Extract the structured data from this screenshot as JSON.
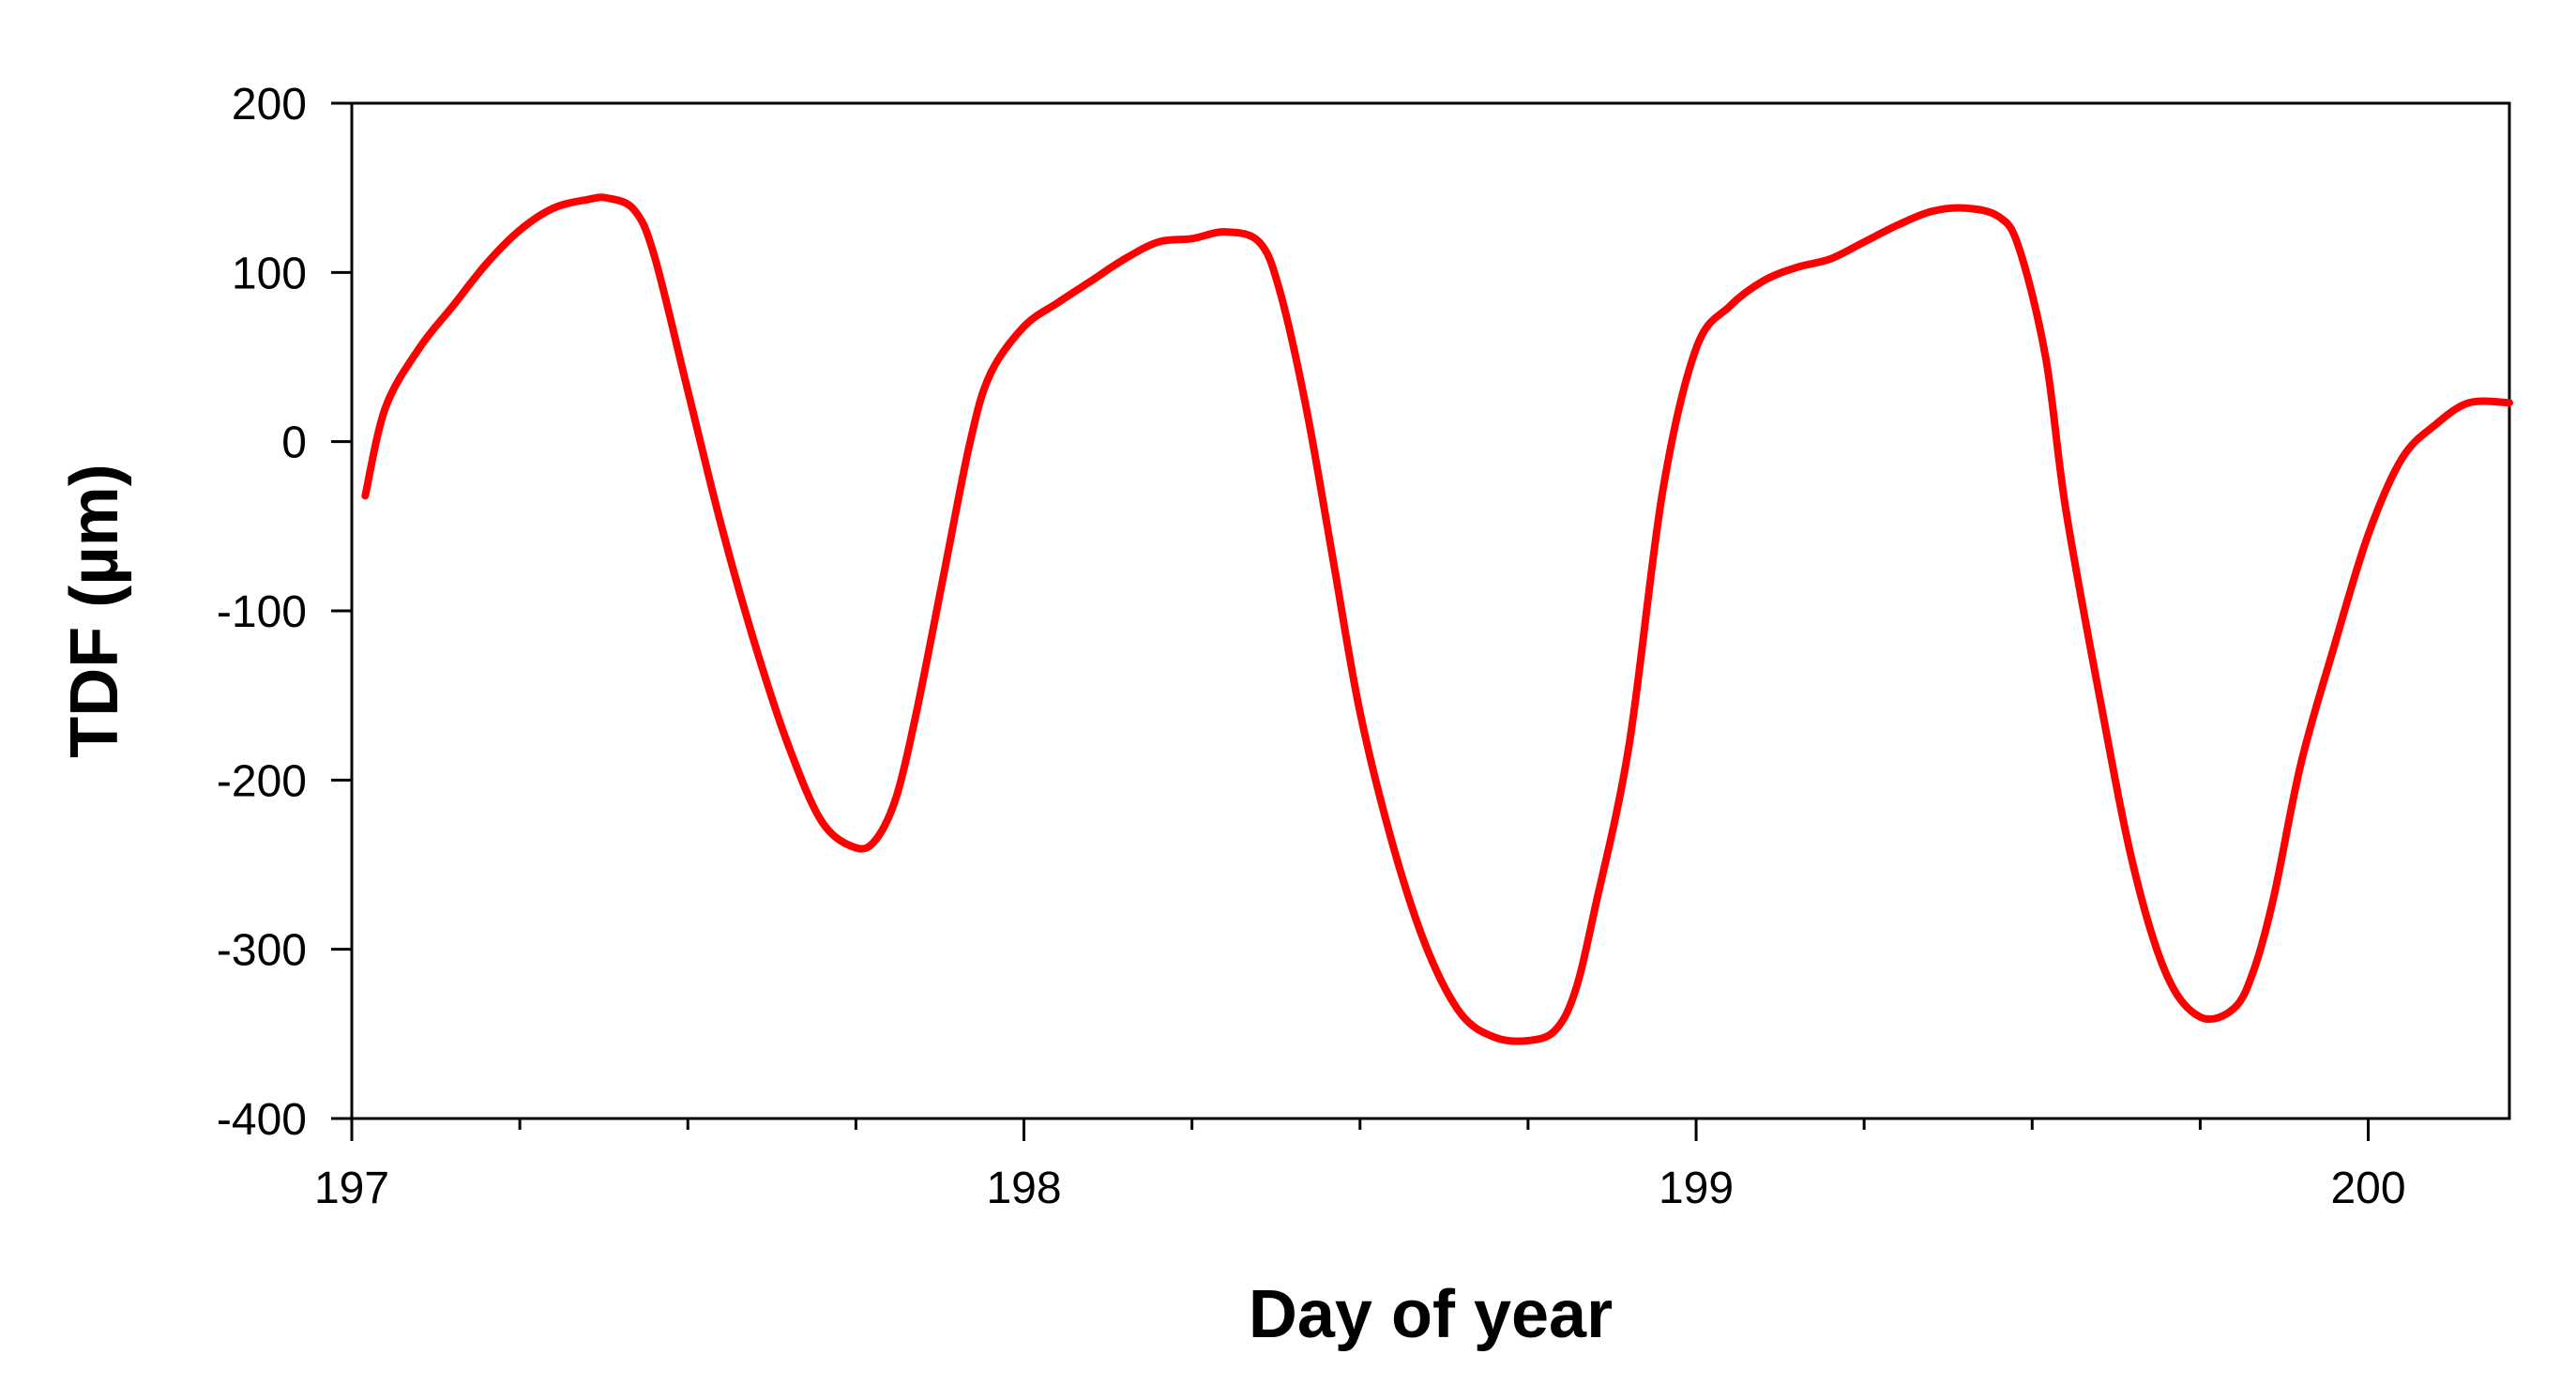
{
  "chart_data": {
    "type": "line",
    "title": "",
    "xlabel": "Day of year",
    "ylabel": "TDF (µm)",
    "xlim": [
      197,
      200.21
    ],
    "ylim": [
      -400,
      200
    ],
    "x_ticks": [
      197,
      198,
      199,
      200
    ],
    "x_minor_step": 0.25,
    "y_ticks": [
      200,
      100,
      0,
      -100,
      -200,
      -300,
      -400
    ],
    "grid": false,
    "legend": "none",
    "series_color": "#ff0000",
    "series": [
      {
        "x": [
          197.02,
          197.05,
          197.1,
          197.15,
          197.2,
          197.25,
          197.3,
          197.35,
          197.38,
          197.42,
          197.45,
          197.5,
          197.55,
          197.6,
          197.65,
          197.7,
          197.75,
          197.78,
          197.81,
          197.84,
          197.88,
          197.92,
          197.95,
          198.0,
          198.05,
          198.1,
          198.15,
          198.2,
          198.25,
          198.3,
          198.35,
          198.38,
          198.42,
          198.46,
          198.5,
          198.55,
          198.6,
          198.65,
          198.7,
          198.75,
          198.79,
          198.82,
          198.85,
          198.9,
          198.95,
          199.0,
          199.05,
          199.1,
          199.15,
          199.2,
          199.25,
          199.3,
          199.35,
          199.4,
          199.45,
          199.48,
          199.52,
          199.55,
          199.6,
          199.65,
          199.7,
          199.75,
          199.8,
          199.83,
          199.86,
          199.9,
          199.95,
          200.0,
          200.05,
          200.1,
          200.15,
          200.21
        ],
        "y": [
          -32,
          20,
          55,
          80,
          105,
          125,
          138,
          143,
          144,
          137,
          110,
          30,
          -50,
          -120,
          -180,
          -225,
          -240,
          -235,
          -210,
          -160,
          -80,
          0,
          40,
          68,
          82,
          95,
          108,
          118,
          120,
          124,
          118,
          90,
          20,
          -70,
          -160,
          -240,
          -300,
          -338,
          -352,
          -354,
          -348,
          -325,
          -275,
          -180,
          -30,
          55,
          80,
          95,
          103,
          108,
          118,
          128,
          136,
          138,
          133,
          115,
          50,
          -40,
          -150,
          -250,
          -315,
          -340,
          -335,
          -312,
          -268,
          -190,
          -120,
          -55,
          -10,
          10,
          23,
          23
        ]
      }
    ]
  }
}
